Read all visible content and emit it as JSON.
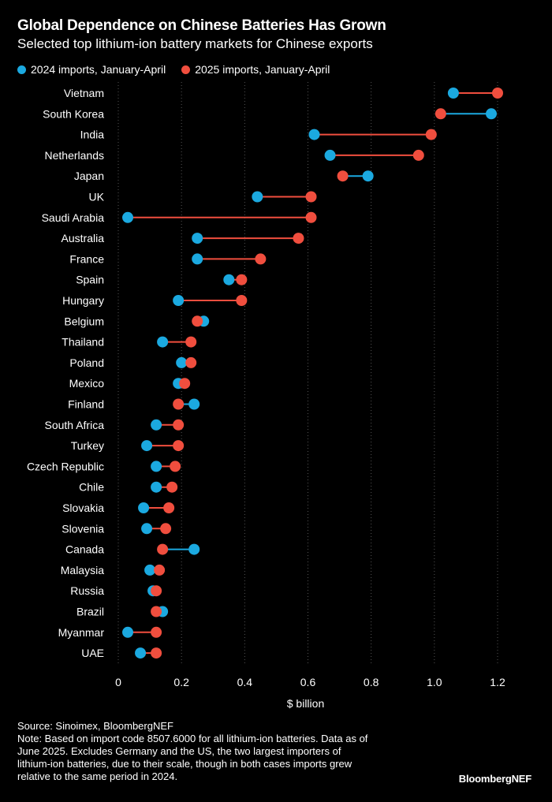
{
  "header": {
    "title": "Global Dependence on Chinese Batteries Has Grown",
    "subtitle": "Selected top lithium-ion battery markets for Chinese exports"
  },
  "legend": {
    "series_2024": "2024 imports, January-April",
    "series_2025": "2025 imports, January-April"
  },
  "colors": {
    "series_2024": "#1ba9e0",
    "series_2025": "#f04e3e",
    "background": "#000000",
    "text": "#ffffff",
    "gridline": "#555555"
  },
  "chart_data": {
    "type": "dumbbell",
    "xlabel": "$ billion",
    "xlim": [
      0,
      1.2
    ],
    "xticks": [
      0,
      0.2,
      0.4,
      0.6,
      0.8,
      1.0,
      1.2
    ],
    "xtick_labels": [
      "0",
      "0.2",
      "0.4",
      "0.6",
      "0.8",
      "1.0",
      "1.2"
    ],
    "categories": [
      "Vietnam",
      "South Korea",
      "India",
      "Netherlands",
      "Japan",
      "UK",
      "Saudi Arabia",
      "Australia",
      "France",
      "Spain",
      "Hungary",
      "Belgium",
      "Thailand",
      "Poland",
      "Mexico",
      "Finland",
      "South Africa",
      "Turkey",
      "Czech Republic",
      "Chile",
      "Slovakia",
      "Slovenia",
      "Canada",
      "Malaysia",
      "Russia",
      "Brazil",
      "Myanmar",
      "UAE"
    ],
    "series": [
      {
        "name": "2024 imports, January-April",
        "values": [
          1.06,
          1.18,
          0.62,
          0.67,
          0.79,
          0.44,
          0.03,
          0.25,
          0.25,
          0.35,
          0.19,
          0.27,
          0.14,
          0.2,
          0.19,
          0.24,
          0.12,
          0.09,
          0.12,
          0.12,
          0.08,
          0.09,
          0.24,
          0.1,
          0.11,
          0.14,
          0.03,
          0.07
        ]
      },
      {
        "name": "2025 imports, January-April",
        "values": [
          1.2,
          1.02,
          0.99,
          0.95,
          0.71,
          0.61,
          0.61,
          0.57,
          0.45,
          0.39,
          0.39,
          0.25,
          0.23,
          0.23,
          0.21,
          0.19,
          0.19,
          0.19,
          0.18,
          0.17,
          0.16,
          0.15,
          0.14,
          0.13,
          0.12,
          0.12,
          0.12,
          0.12
        ]
      }
    ]
  },
  "footer": {
    "source": "Source: Sinoimex, BloombergNEF",
    "note_lines": [
      "Note: Based on import code 8507.6000 for all lithium-ion batteries. Data as of",
      "June 2025. Excludes Germany and the US, the two largest importers of",
      "lithium-ion batteries, due to their scale, though in both cases imports grew",
      "relative to the same period in 2024."
    ],
    "brand": "BloombergNEF"
  }
}
